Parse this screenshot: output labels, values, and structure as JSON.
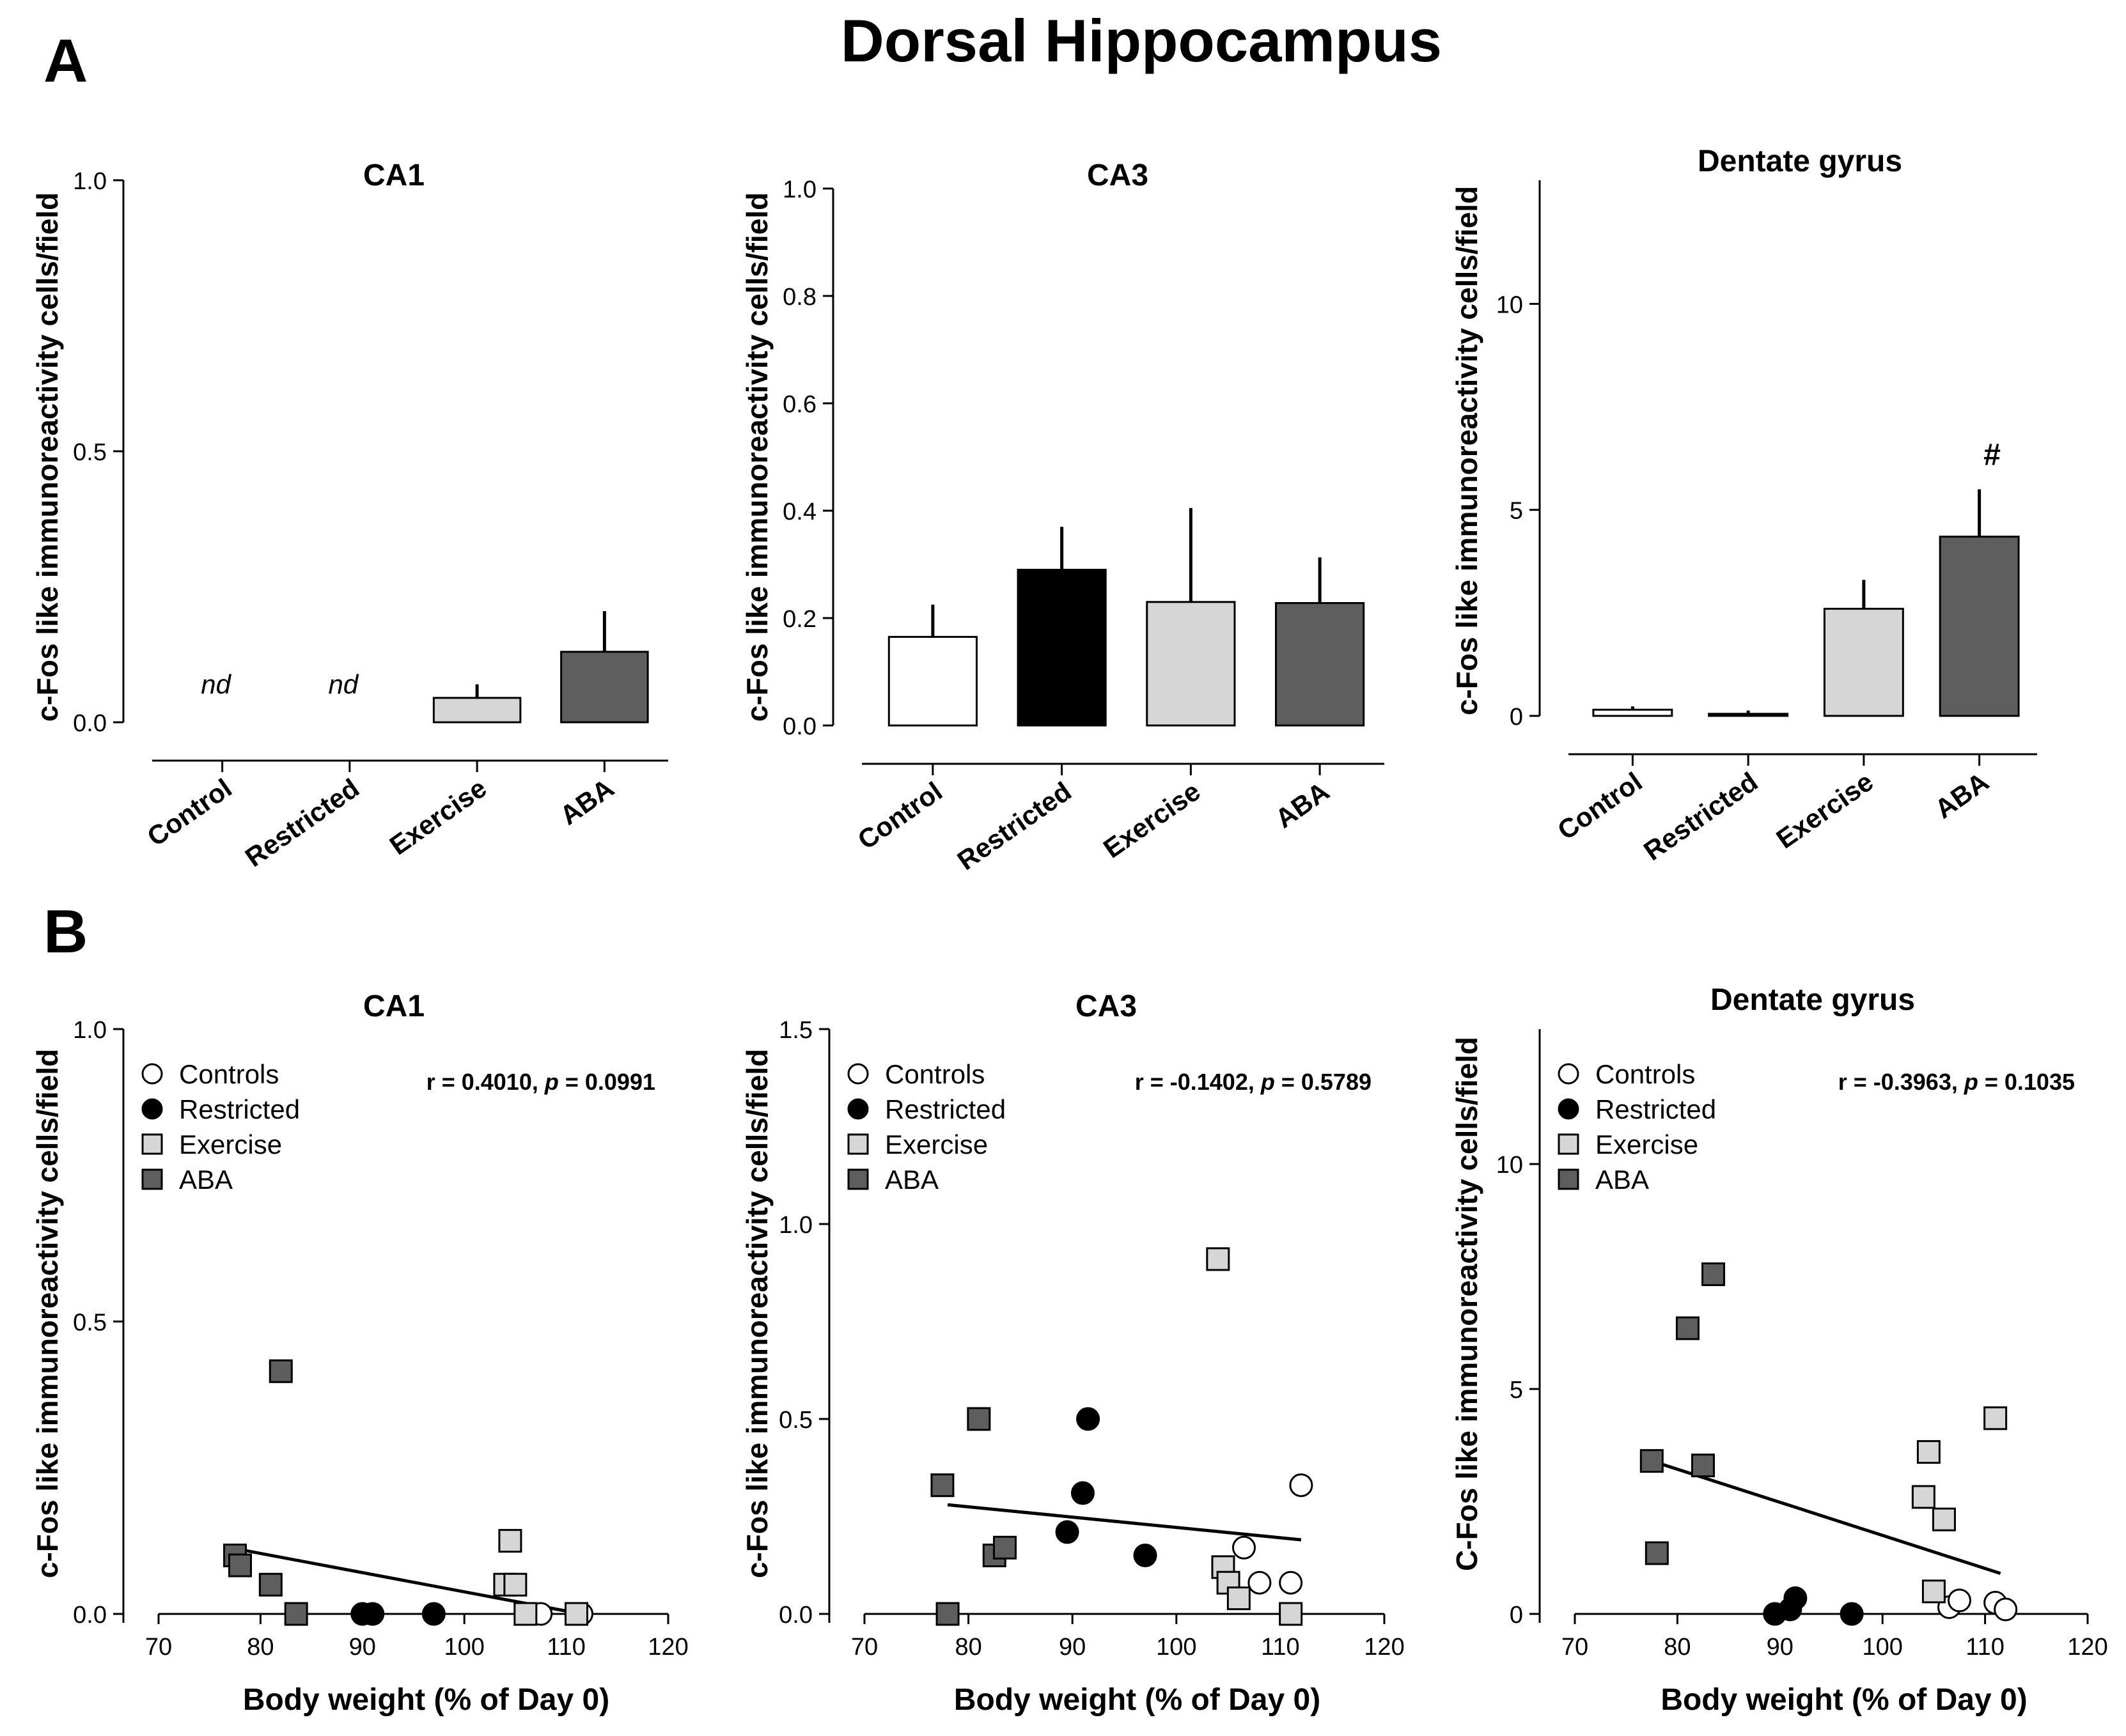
{
  "figure_title": "Dorsal Hippocampus",
  "panel_labels": [
    "A",
    "B"
  ],
  "colors": {
    "control": "#ffffff",
    "restricted": "#000000",
    "exercise": "#d6d6d6",
    "aba": "#5e5e5e",
    "outline": "#000000"
  },
  "legend": [
    {
      "label": "Controls",
      "marker": "open-circle"
    },
    {
      "label": "Restricted",
      "marker": "filled-circle"
    },
    {
      "label": "Exercise",
      "marker": "light-square"
    },
    {
      "label": "ABA",
      "marker": "dark-square"
    }
  ],
  "chart_data": [
    {
      "type": "bar",
      "title": "CA1",
      "ylabel": "c-Fos like immunoreactivity cells/field",
      "ylim": [
        0,
        1.0
      ],
      "yticks": [
        0.0,
        0.5,
        1.0
      ],
      "ytick_labels": [
        "0.0",
        "0.5",
        "1.0"
      ],
      "categories": [
        "Control",
        "Restricted",
        "Exercise",
        "ABA"
      ],
      "values": [
        null,
        null,
        0.045,
        0.13
      ],
      "errors": [
        null,
        null,
        0.025,
        0.075
      ],
      "value_text": [
        "nd",
        "nd",
        "",
        ""
      ],
      "annotation": ""
    },
    {
      "type": "bar",
      "title": "CA3",
      "ylabel": "c-Fos  like immunoreactivity cells/field",
      "ylim": [
        0,
        1.0
      ],
      "yticks": [
        0.0,
        0.2,
        0.4,
        0.6,
        0.8,
        1.0
      ],
      "ytick_labels": [
        "0.0",
        "0.2",
        "0.4",
        "0.6",
        "0.8",
        "1.0"
      ],
      "categories": [
        "Control",
        "Restricted",
        "Exercise",
        "ABA"
      ],
      "values": [
        0.165,
        0.29,
        0.23,
        0.228
      ],
      "errors": [
        0.06,
        0.08,
        0.175,
        0.085
      ],
      "value_text": [
        "",
        "",
        "",
        ""
      ],
      "annotation": ""
    },
    {
      "type": "bar",
      "title": "Dentate gyrus",
      "ylabel": "c-Fos like immunoreactivity cells/field",
      "ylim": [
        0,
        13
      ],
      "yticks": [
        0,
        5,
        10
      ],
      "ytick_labels": [
        "0",
        "5",
        "10"
      ],
      "categories": [
        "Control",
        "Restricted",
        "Exercise",
        "ABA"
      ],
      "values": [
        0.15,
        0.05,
        2.6,
        4.35
      ],
      "errors": [
        0.08,
        0.08,
        0.7,
        1.15
      ],
      "value_text": [
        "",
        "",
        "",
        ""
      ],
      "annotation": "#"
    },
    {
      "type": "scatter",
      "title": "CA1",
      "xlabel": "Body weight (% of Day 0)",
      "ylabel": "c-Fos like immunoreactivity cells/field",
      "xlim": [
        70,
        120
      ],
      "ylim": [
        0,
        1.0
      ],
      "xticks": [
        70,
        80,
        90,
        100,
        110,
        120
      ],
      "yticks": [
        0.0,
        0.5,
        1.0
      ],
      "ytick_labels": [
        "0.0",
        "0.5",
        "1.0"
      ],
      "stat": "r = 0.4010, p = 0.0991",
      "regression": {
        "x": [
          78,
          111.5
        ],
        "y": [
          0.11,
          0.0
        ]
      },
      "series": [
        {
          "name": "Controls",
          "x": [
            107.5,
            111,
            111.5
          ],
          "y": [
            0.0,
            0.0,
            0.0
          ]
        },
        {
          "name": "Restricted",
          "x": [
            90,
            91,
            97
          ],
          "y": [
            0.0,
            0.0,
            0.0
          ]
        },
        {
          "name": "Exercise",
          "x": [
            104,
            104.5,
            105,
            106,
            111
          ],
          "y": [
            0.05,
            0.125,
            0.05,
            0.0,
            0.0
          ]
        },
        {
          "name": "ABA",
          "x": [
            77.5,
            78,
            81,
            82,
            83.5
          ],
          "y": [
            0.1,
            0.083,
            0.05,
            0.415,
            0.0
          ]
        }
      ]
    },
    {
      "type": "scatter",
      "title": "CA3",
      "xlabel": "Body weight (% of Day 0)",
      "ylabel": "c-Fos like immunoreactivity cells/field",
      "xlim": [
        70,
        120
      ],
      "ylim": [
        0,
        1.5
      ],
      "xticks": [
        70,
        80,
        90,
        100,
        110,
        120
      ],
      "yticks": [
        0.0,
        0.5,
        1.0,
        1.5
      ],
      "ytick_labels": [
        "0.0",
        "0.5",
        "1.0",
        "1.5"
      ],
      "stat": "r = -0.1402, p = 0.5789",
      "regression": {
        "x": [
          78,
          112
        ],
        "y": [
          0.28,
          0.19
        ]
      },
      "series": [
        {
          "name": "Controls",
          "x": [
            106.5,
            108,
            111,
            112
          ],
          "y": [
            0.17,
            0.08,
            0.08,
            0.33
          ]
        },
        {
          "name": "Restricted",
          "x": [
            89.5,
            91,
            91.5,
            97
          ],
          "y": [
            0.21,
            0.31,
            0.5,
            0.15
          ]
        },
        {
          "name": "Exercise",
          "x": [
            104,
            104.5,
            105,
            106,
            111
          ],
          "y": [
            0.91,
            0.12,
            0.08,
            0.04,
            0.0
          ]
        },
        {
          "name": "ABA",
          "x": [
            77.5,
            78,
            81,
            82.5,
            83.5
          ],
          "y": [
            0.33,
            0.0,
            0.5,
            0.15,
            0.17
          ]
        }
      ]
    },
    {
      "type": "scatter",
      "title": "Dentate gyrus",
      "xlabel": "Body weight (% of Day 0)",
      "ylabel": "C-Fos like immunoreactivity cells/field",
      "xlim": [
        70,
        120
      ],
      "ylim": [
        0,
        13
      ],
      "xticks": [
        70,
        80,
        90,
        100,
        110,
        120
      ],
      "yticks": [
        0,
        5,
        10
      ],
      "ytick_labels": [
        "0",
        "5",
        "10"
      ],
      "stat": "r = -0.3963, p = 0.1035",
      "regression": {
        "x": [
          77.5,
          111.5
        ],
        "y": [
          3.4,
          0.9
        ]
      },
      "series": [
        {
          "name": "Controls",
          "x": [
            106.5,
            107.5,
            111,
            112
          ],
          "y": [
            0.15,
            0.3,
            0.25,
            0.1
          ]
        },
        {
          "name": "Restricted",
          "x": [
            89.5,
            91,
            91.5,
            97
          ],
          "y": [
            0.0,
            0.1,
            0.35,
            0.0
          ]
        },
        {
          "name": "Exercise",
          "x": [
            104,
            104.5,
            105,
            106,
            111
          ],
          "y": [
            2.6,
            3.6,
            0.5,
            2.1,
            4.35
          ]
        },
        {
          "name": "ABA",
          "x": [
            77.5,
            78,
            81,
            82.5,
            83.5
          ],
          "y": [
            3.4,
            1.35,
            6.35,
            3.3,
            7.55
          ]
        }
      ]
    }
  ]
}
